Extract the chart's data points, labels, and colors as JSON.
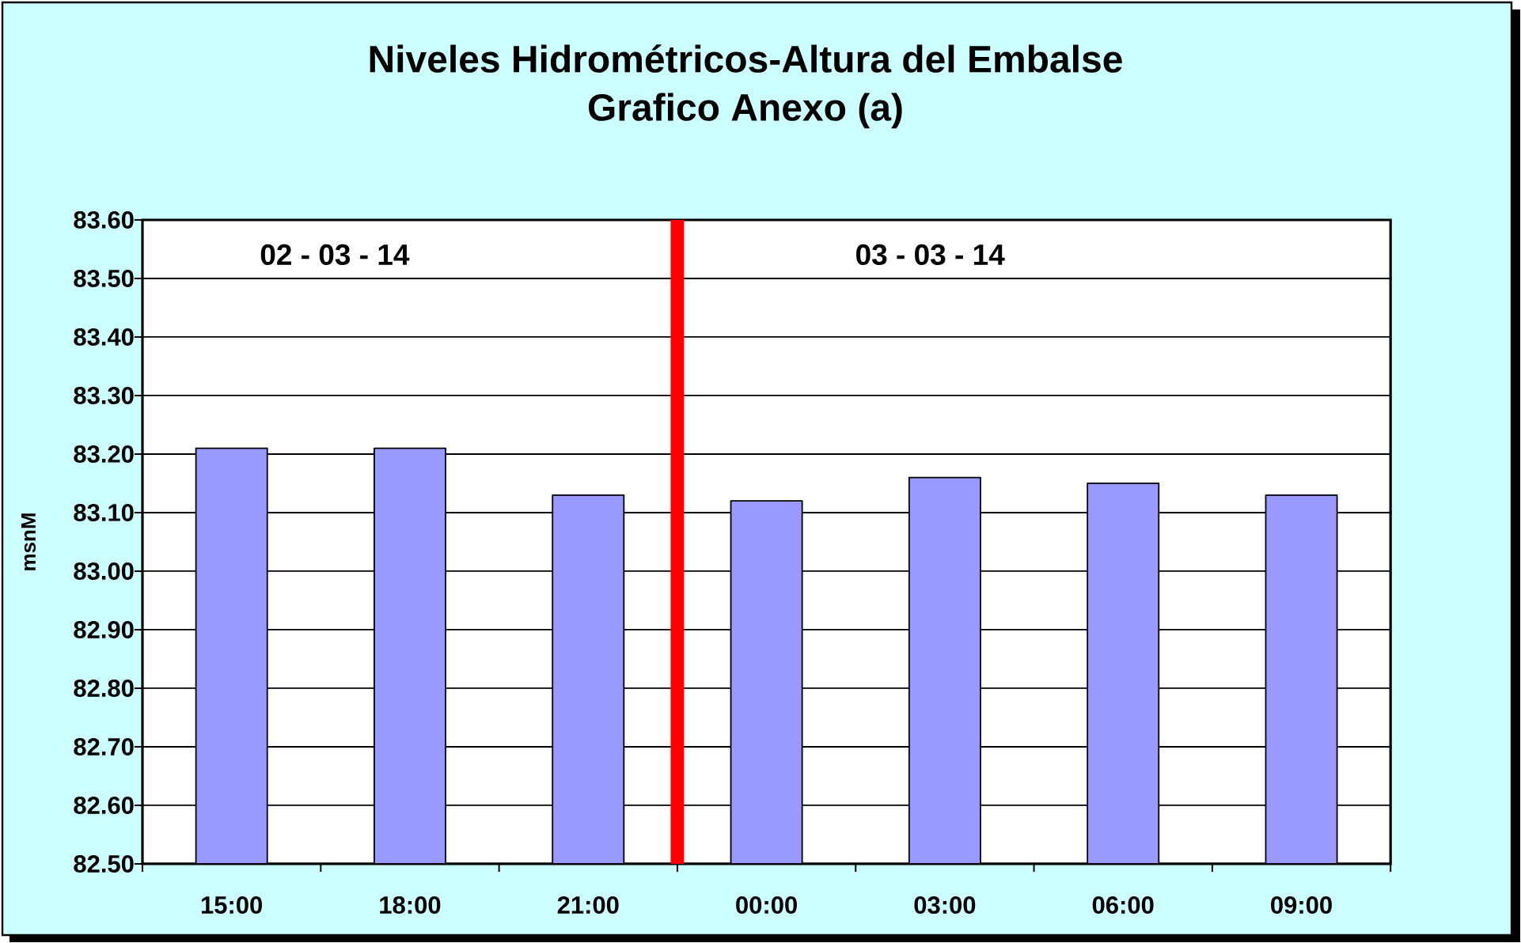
{
  "chart_data": {
    "type": "bar",
    "title": "Niveles Hidrométricos-Altura del Embalse",
    "subtitle": "Grafico Anexo (a)",
    "ylabel": "msnM",
    "categories": [
      "15:00",
      "18:00",
      "21:00",
      "00:00",
      "03:00",
      "06:00",
      "09:00"
    ],
    "values": [
      83.21,
      83.21,
      83.13,
      83.12,
      83.16,
      83.15,
      83.13
    ],
    "color": "#9999ff",
    "ylim": [
      82.5,
      83.6
    ],
    "yticks": [
      {
        "value": 82.5,
        "label": "82.50"
      },
      {
        "value": 82.6,
        "label": "82.60"
      },
      {
        "value": 82.7,
        "label": "82.70"
      },
      {
        "value": 82.8,
        "label": "82.80"
      },
      {
        "value": 82.9,
        "label": "82.90"
      },
      {
        "value": 83.0,
        "label": "83.00"
      },
      {
        "value": 83.1,
        "label": "83.10"
      },
      {
        "value": 83.2,
        "label": "83.20"
      },
      {
        "value": 83.3,
        "label": "83.30"
      },
      {
        "value": 83.4,
        "label": "83.40"
      },
      {
        "value": 83.5,
        "label": "83.50"
      },
      {
        "value": 83.6,
        "label": "83.60"
      }
    ],
    "grid": "y",
    "ref_lines": [
      {
        "axis": "x",
        "value": "00:00",
        "color": "#ff0000"
      }
    ],
    "annotations": [
      "02 - 03 - 14",
      "03 - 03 - 14"
    ]
  }
}
